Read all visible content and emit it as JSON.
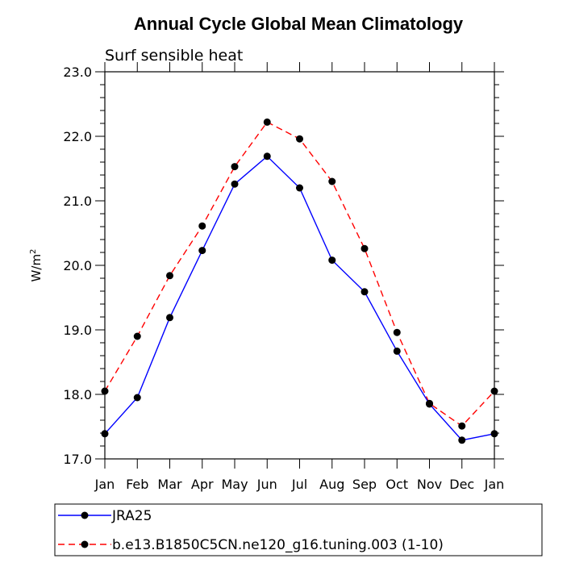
{
  "chart_data": {
    "type": "line",
    "title": "Annual Cycle Global Mean Climatology",
    "subtitle": "Surf sensible heat",
    "xlabel": "",
    "ylabel": "W/m",
    "ylabel_superscript": "2",
    "ylim": [
      17.0,
      23.0
    ],
    "y_ticks": [
      "17.0",
      "18.0",
      "19.0",
      "20.0",
      "21.0",
      "22.0",
      "23.0"
    ],
    "categories": [
      "Jan",
      "Feb",
      "Mar",
      "Apr",
      "May",
      "Jun",
      "Jul",
      "Aug",
      "Sep",
      "Oct",
      "Nov",
      "Dec",
      "Jan"
    ],
    "series": [
      {
        "name": "JRA25",
        "color": "#0000ff",
        "dashed": false,
        "values": [
          17.39,
          17.95,
          19.19,
          20.23,
          21.26,
          21.69,
          21.2,
          20.08,
          19.59,
          18.67,
          17.85,
          17.29,
          17.39
        ]
      },
      {
        "name": "b.e13.B1850C5CN.ne120_g16.tuning.003 (1-10)",
        "color": "#ff0000",
        "dashed": true,
        "values": [
          18.05,
          18.9,
          19.84,
          20.61,
          21.53,
          22.22,
          21.96,
          21.3,
          20.26,
          18.96,
          17.86,
          17.51,
          18.05
        ]
      }
    ],
    "grid": false,
    "legend_position": "bottom"
  }
}
